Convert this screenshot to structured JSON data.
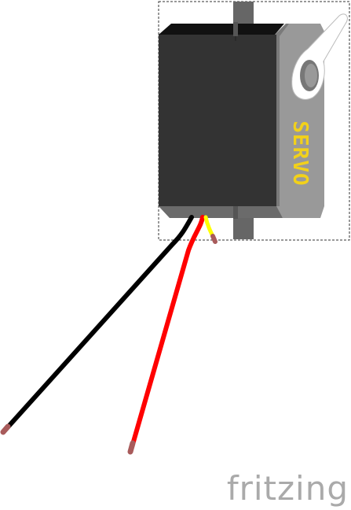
{
  "servo": {
    "label": "SERVO",
    "body_color": "#333333",
    "top_color": "#111111",
    "mount_color": "#999999",
    "shaft_color": "#666666",
    "label_color": "#f2d11a",
    "horn_color": "#ffffff"
  },
  "wires": [
    {
      "name": "black-wire",
      "color": "#000000"
    },
    {
      "name": "red-wire",
      "color": "#ff0000"
    },
    {
      "name": "yellow-wire",
      "color": "#ffff00"
    }
  ],
  "wire_tip_color": "#a85b5b",
  "brand": {
    "name": "fritzing",
    "color": "#aaaaaa"
  }
}
